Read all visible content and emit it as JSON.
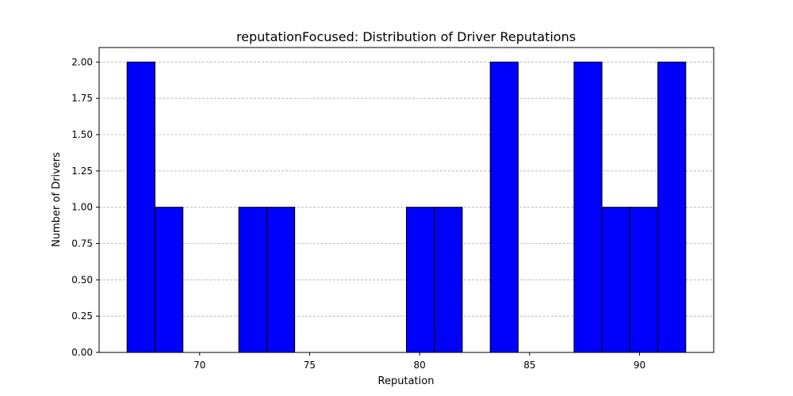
{
  "chart_data": {
    "type": "bar",
    "title": "reputationFocused: Distribution of Driver Reputations",
    "xlabel": "Reputation",
    "ylabel": "Number of Drivers",
    "bins": [
      {
        "start": 66.7,
        "end": 67.97,
        "count": 2
      },
      {
        "start": 67.97,
        "end": 69.24,
        "count": 1
      },
      {
        "start": 69.24,
        "end": 70.51,
        "count": 0
      },
      {
        "start": 70.51,
        "end": 71.78,
        "count": 0
      },
      {
        "start": 71.78,
        "end": 73.05,
        "count": 1
      },
      {
        "start": 73.05,
        "end": 74.32,
        "count": 1
      },
      {
        "start": 74.32,
        "end": 75.59,
        "count": 0
      },
      {
        "start": 75.59,
        "end": 76.86,
        "count": 0
      },
      {
        "start": 76.86,
        "end": 78.13,
        "count": 0
      },
      {
        "start": 78.13,
        "end": 79.4,
        "count": 0
      },
      {
        "start": 79.4,
        "end": 80.67,
        "count": 1
      },
      {
        "start": 80.67,
        "end": 81.94,
        "count": 1
      },
      {
        "start": 81.94,
        "end": 83.21,
        "count": 0
      },
      {
        "start": 83.21,
        "end": 84.48,
        "count": 2
      },
      {
        "start": 84.48,
        "end": 85.75,
        "count": 0
      },
      {
        "start": 85.75,
        "end": 87.02,
        "count": 0
      },
      {
        "start": 87.02,
        "end": 88.29,
        "count": 2
      },
      {
        "start": 88.29,
        "end": 89.56,
        "count": 1
      },
      {
        "start": 89.56,
        "end": 90.83,
        "count": 1
      },
      {
        "start": 90.83,
        "end": 92.1,
        "count": 2
      }
    ],
    "xlim": [
      65.43,
      93.37
    ],
    "ylim": [
      0,
      2.1
    ],
    "xticks": [
      70,
      75,
      80,
      85,
      90
    ],
    "xtick_labels": [
      "70",
      "75",
      "80",
      "85",
      "90"
    ],
    "yticks": [
      0,
      0.25,
      0.5,
      0.75,
      1.0,
      1.25,
      1.5,
      1.75,
      2.0
    ],
    "ytick_labels": [
      "0.00",
      "0.25",
      "0.50",
      "0.75",
      "1.00",
      "1.25",
      "1.50",
      "1.75",
      "2.00"
    ],
    "grid": "y-dashed",
    "bar_color": "#0000ff",
    "edge_color": "#000000"
  }
}
